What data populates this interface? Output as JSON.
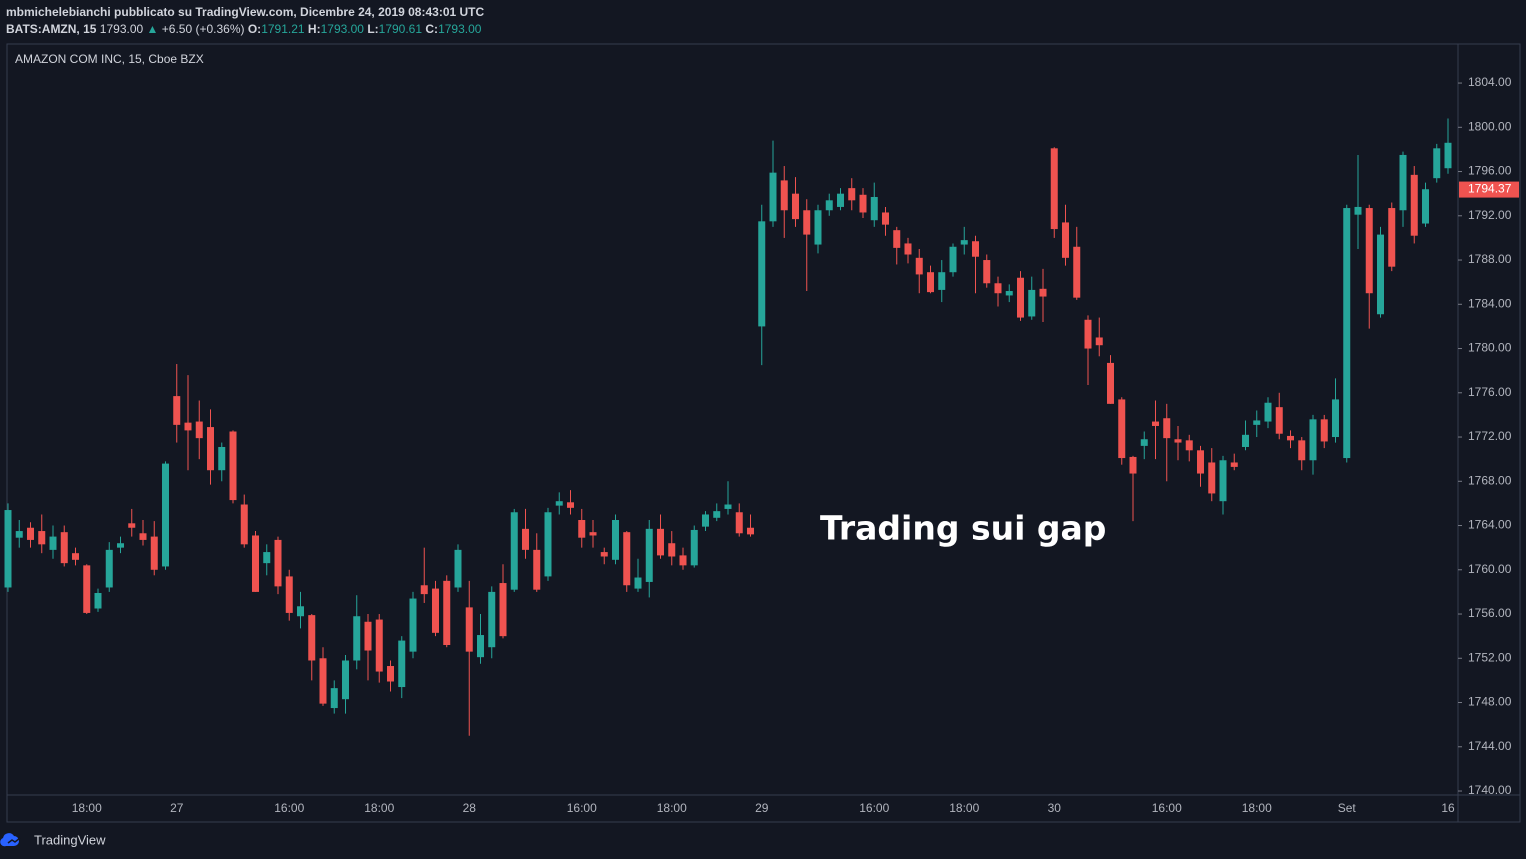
{
  "header": {
    "line1": "mbmichelebianchi pubblicato su TradingView.com, Dicembre 24, 2019 08:43:01 UTC",
    "symbol": "BATS:AMZN, 15",
    "price": "1793.00",
    "arrow": "▲",
    "change": "+6.50 (+0.36%)",
    "o_label": "O:",
    "o_value": "1791.21",
    "h_label": "H:",
    "h_value": "1793.00",
    "l_label": "L:",
    "l_value": "1790.61",
    "c_label": "C:",
    "c_value": "1793.00"
  },
  "footer": {
    "brand": "TradingView"
  },
  "chart_data": {
    "type": "candlestick",
    "legend": "AMAZON COM INC, 15, Cboe BZX",
    "annotation": "Trading sui gap",
    "up_color": "#26a69a",
    "down_color": "#ef5350",
    "last_price": 1794.37,
    "ylim": [
      1739.64,
      1807.53
    ],
    "yticks": [
      {
        "value": 1740,
        "label": "1740.00"
      },
      {
        "value": 1744,
        "label": "1744.00"
      },
      {
        "value": 1748,
        "label": "1748.00"
      },
      {
        "value": 1752,
        "label": "1752.00"
      },
      {
        "value": 1756,
        "label": "1756.00"
      },
      {
        "value": 1760,
        "label": "1760.00"
      },
      {
        "value": 1764,
        "label": "1764.00"
      },
      {
        "value": 1768,
        "label": "1768.00"
      },
      {
        "value": 1772,
        "label": "1772.00"
      },
      {
        "value": 1776,
        "label": "1776.00"
      },
      {
        "value": 1780,
        "label": "1780.00"
      },
      {
        "value": 1784,
        "label": "1784.00"
      },
      {
        "value": 1788,
        "label": "1788.00"
      },
      {
        "value": 1792,
        "label": "1792.00"
      },
      {
        "value": 1796,
        "label": "1796.00"
      },
      {
        "value": 1800,
        "label": "1800.00"
      },
      {
        "value": 1804,
        "label": "1804.00"
      }
    ],
    "categories": [
      null,
      null,
      null,
      null,
      null,
      null,
      null,
      "18:00",
      null,
      null,
      null,
      null,
      null,
      null,
      null,
      "27",
      null,
      null,
      null,
      null,
      null,
      null,
      null,
      null,
      null,
      "16:00",
      null,
      null,
      null,
      null,
      null,
      null,
      null,
      "18:00",
      null,
      null,
      null,
      null,
      null,
      null,
      null,
      "28",
      null,
      null,
      null,
      null,
      null,
      null,
      null,
      null,
      null,
      "16:00",
      null,
      null,
      null,
      null,
      null,
      null,
      null,
      "18:00",
      null,
      null,
      null,
      null,
      null,
      null,
      null,
      "29",
      null,
      null,
      null,
      null,
      null,
      null,
      null,
      null,
      null,
      "16:00",
      null,
      null,
      null,
      null,
      null,
      null,
      null,
      "18:00",
      null,
      null,
      null,
      null,
      null,
      null,
      null,
      "30",
      null,
      null,
      null,
      null,
      null,
      null,
      null,
      null,
      null,
      "16:00",
      null,
      null,
      null,
      null,
      null,
      null,
      null,
      "18:00",
      null,
      null,
      null,
      null,
      null,
      null,
      null,
      "Set",
      null,
      null,
      null,
      null,
      null,
      null,
      null,
      null,
      "16"
    ],
    "open": [
      1758.4,
      1762.9,
      1763.8,
      1763.5,
      1761.8,
      1763.4,
      1761.5,
      1760.4,
      1756.5,
      1758.4,
      1762,
      1764.2,
      1763.3,
      1763,
      1760.3,
      1775.7,
      1773.3,
      1773.4,
      1772.9,
      1769,
      1772.5,
      1765.9,
      1763.1,
      1760.6,
      1762.7,
      1759.4,
      1755.8,
      1755.9,
      1752,
      1747.5,
      1748.3,
      1751.8,
      1755.3,
      1755.5,
      1751.3,
      1749.4,
      1752.6,
      1758.6,
      1758.3,
      1759,
      1758.4,
      1756.6,
      1752.1,
      1753,
      1758.8,
      1758.2,
      1763.7,
      1761.8,
      1759.4,
      1765.8,
      1766.1,
      1764.5,
      1763.4,
      1761.6,
      1760.9,
      1763.4,
      1758.3,
      1758.9,
      1763.7,
      1762.4,
      1761.3,
      1760.4,
      1763.9,
      1764.7,
      1765.5,
      1765.2,
      1763.8,
      1782,
      1791.5,
      1795.2,
      1794,
      1792.5,
      1789.4,
      1792.5,
      1792.8,
      1794.5,
      1793.9,
      1791.6,
      1792.3,
      1790.7,
      1789.5,
      1788.2,
      1786.9,
      1785.3,
      1786.9,
      1789.4,
      1789.7,
      1788,
      1785.9,
      1784.8,
      1786.4,
      1782.9,
      1785.4,
      1798.1,
      1791.4,
      1789.2,
      1782.6,
      1781,
      1778.7,
      1775.4,
      1770.2,
      1771.2,
      1773.4,
      1773.7,
      1771.8,
      1771.7,
      1770.8,
      1769.7,
      1766.2,
      1769.7,
      1771.1,
      1773.1,
      1773.4,
      1774.7,
      1772.1,
      1771.7,
      1769.9,
      1773.6,
      1772,
      1770.1,
      1792.1,
      1792.7,
      1783.1,
      1792.7,
      1792.5,
      1795.7,
      1791.3,
      1795.4,
      1796.3
    ],
    "high": [
      1766,
      1764.5,
      1764.3,
      1765,
      1764,
      1764,
      1762,
      1760.5,
      1758.3,
      1762.5,
      1763,
      1765.5,
      1764.5,
      1764.4,
      1769.8,
      1778.6,
      1777.6,
      1775.3,
      1774.5,
      1771.5,
      1772.6,
      1766.8,
      1763.5,
      1762.3,
      1763,
      1760,
      1758,
      1756,
      1753,
      1750,
      1752.3,
      1757.7,
      1756,
      1756,
      1751.8,
      1754,
      1758,
      1762,
      1759,
      1759.5,
      1762.3,
      1759,
      1756,
      1758.5,
      1760.5,
      1765.5,
      1765.5,
      1763.3,
      1765.6,
      1767,
      1767.2,
      1765.5,
      1764.5,
      1762,
      1765,
      1763.5,
      1761,
      1764.5,
      1765,
      1763.5,
      1762,
      1764,
      1765.3,
      1766,
      1768,
      1766,
      1765,
      1793,
      1798.8,
      1796.5,
      1795.5,
      1793.5,
      1793,
      1794,
      1794.5,
      1795.4,
      1794.5,
      1795,
      1792.8,
      1791,
      1790,
      1789,
      1787.5,
      1788,
      1789.5,
      1791,
      1790.2,
      1788.5,
      1786.5,
      1785.8,
      1787,
      1786.5,
      1787.2,
      1798.2,
      1793,
      1791,
      1783,
      1782.8,
      1779.4,
      1775.6,
      1770.3,
      1772.5,
      1775.3,
      1775,
      1773,
      1772.2,
      1771.2,
      1771,
      1770.3,
      1770.5,
      1773.5,
      1774.4,
      1775.6,
      1776,
      1772.6,
      1772,
      1774,
      1774,
      1777.3,
      1793,
      1797.5,
      1793,
      1791,
      1793.2,
      1797.8,
      1796.5,
      1795,
      1798.5,
      1800.8
    ],
    "low": [
      1758,
      1762,
      1762,
      1761.5,
      1761,
      1760.3,
      1760.4,
      1756,
      1756.2,
      1758,
      1761.5,
      1763,
      1762.2,
      1759.5,
      1760,
      1771.5,
      1769,
      1770,
      1767.7,
      1768,
      1766,
      1762,
      1758,
      1759.5,
      1757.8,
      1755.4,
      1754.7,
      1750,
      1747.7,
      1747,
      1747,
      1751,
      1750,
      1749.8,
      1749,
      1748.4,
      1752,
      1757,
      1754,
      1753,
      1758,
      1745,
      1751.5,
      1752,
      1753.8,
      1758,
      1761,
      1758,
      1759,
      1765,
      1765,
      1762,
      1762,
      1760.5,
      1760.5,
      1758,
      1758,
      1757.5,
      1761,
      1760.4,
      1760,
      1760.2,
      1763.5,
      1764.4,
      1765,
      1763,
      1763,
      1778.5,
      1791,
      1790,
      1791,
      1785.2,
      1788.6,
      1792,
      1792.5,
      1792.5,
      1791.8,
      1791,
      1790.2,
      1787.6,
      1787.7,
      1785,
      1785,
      1784.2,
      1786.5,
      1788.5,
      1785,
      1785.5,
      1783.8,
      1784.2,
      1782.5,
      1782.6,
      1782.4,
      1790,
      1787.5,
      1784.4,
      1776.7,
      1779.3,
      1775,
      1769.5,
      1764.4,
      1770,
      1770,
      1768,
      1769.9,
      1769.8,
      1767.5,
      1766.2,
      1765,
      1769,
      1770.8,
      1772,
      1772.8,
      1771.8,
      1771,
      1769,
      1768.6,
      1771,
      1771.5,
      1769.7,
      1789,
      1781.8,
      1782.8,
      1787,
      1791,
      1789.5,
      1791,
      1795,
      1795.8
    ],
    "close": [
      1765.4,
      1763.5,
      1762.7,
      1762.3,
      1763,
      1760.6,
      1760.9,
      1756.1,
      1757.9,
      1761.8,
      1762.4,
      1763.8,
      1762.7,
      1760,
      1769.6,
      1773.1,
      1772.6,
      1771.9,
      1769,
      1771.1,
      1766.3,
      1762.3,
      1758,
      1761.6,
      1758.5,
      1756.1,
      1756.7,
      1751.8,
      1747.9,
      1749.3,
      1751.8,
      1755.8,
      1752.7,
      1750.8,
      1749.9,
      1753.6,
      1757.4,
      1757.8,
      1754.3,
      1753.2,
      1761.8,
      1752.6,
      1754.1,
      1758,
      1754,
      1765.2,
      1761.8,
      1758.2,
      1765.2,
      1766.2,
      1765.6,
      1762.9,
      1763.1,
      1761.2,
      1764.5,
      1758.6,
      1759.3,
      1763.7,
      1761.3,
      1761.2,
      1760.4,
      1763.6,
      1765,
      1765.3,
      1765.9,
      1763.3,
      1763.2,
      1791.5,
      1795.9,
      1792.5,
      1791.7,
      1790.3,
      1792.5,
      1793.4,
      1794,
      1793.4,
      1792.3,
      1793.7,
      1791.2,
      1789.1,
      1788.5,
      1786.7,
      1785.1,
      1786.9,
      1789.2,
      1789.8,
      1788.3,
      1785.9,
      1785,
      1785.2,
      1782.8,
      1785.3,
      1784.7,
      1790.8,
      1788.2,
      1784.6,
      1780,
      1780.3,
      1775,
      1770.1,
      1768.7,
      1771.8,
      1773,
      1771.9,
      1771.5,
      1770.8,
      1768.7,
      1766.9,
      1769.9,
      1769.3,
      1772.2,
      1773.5,
      1775.1,
      1772.3,
      1771.7,
      1769.9,
      1773.6,
      1771.6,
      1775.4,
      1792.7,
      1792.8,
      1785,
      1790.3,
      1787.4,
      1797.5,
      1790.2,
      1794.4,
      1798.1,
      1798.6
    ]
  }
}
